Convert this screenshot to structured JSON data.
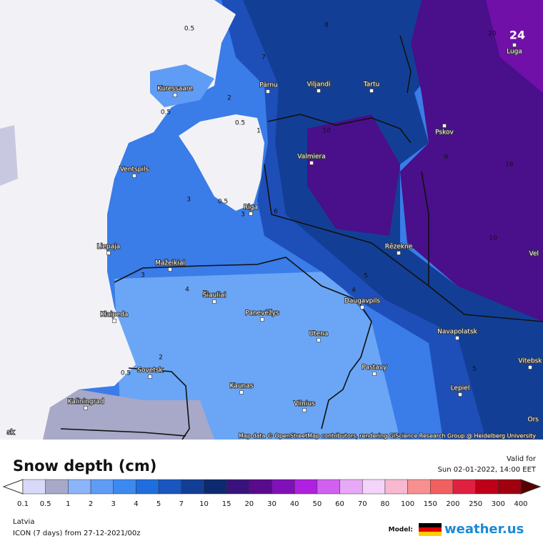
{
  "map": {
    "cities": [
      "Kuressaare",
      "Pärnu",
      "Viljandi",
      "Tartu",
      "Pskov",
      "Luga",
      "Valmiera",
      "Ventspils",
      "Riga",
      "Liepaja",
      "Rēzekne",
      "Mažeikiai",
      "Šiauliai",
      "Panevėžys",
      "Daugavpils",
      "Klaipeda",
      "Utena",
      "Navapolatsk",
      "Vitebsk",
      "Sovetsk",
      "Pastavy",
      "Kaunas",
      "Lepiel",
      "Vilnius",
      "Kaliningrad",
      "Vel",
      "Ors",
      "sk"
    ],
    "contour_labels": [
      0.5,
      0.5,
      0.5,
      0.5,
      0.5,
      1,
      2,
      2,
      3,
      3,
      3,
      4,
      4,
      5,
      5,
      6,
      7,
      8,
      9,
      10,
      10,
      16,
      20
    ],
    "corner_value": "24",
    "attribution": "Map data © OpenStreetMap contributors, rendering GIScience Research Group @ Heidelberg University"
  },
  "legend": {
    "title": "Snow depth (cm)",
    "valid_label": "Valid for",
    "valid_time": "Sun 02-01-2022, 14:00 EET",
    "scale": [
      0.1,
      0.5,
      1,
      2,
      3,
      4,
      5,
      7,
      10,
      15,
      20,
      30,
      40,
      50,
      60,
      70,
      80,
      100,
      150,
      200,
      250,
      300,
      400
    ],
    "colors": [
      "#d8d8f8",
      "#a8a8c8",
      "#8cb4f8",
      "#5f9cf5",
      "#3c8af0",
      "#1f6ee0",
      "#1a56c0",
      "#123f95",
      "#0c2a70",
      "#3a127d",
      "#5a0a8c",
      "#8010b8",
      "#b020e0",
      "#d060f0",
      "#e8a8f8",
      "#f4d4fa",
      "#f8b8d0",
      "#f89090",
      "#f06060",
      "#e02040",
      "#c00018",
      "#a00010"
    ],
    "region": "Latvia",
    "model_run": "ICON (7 days) from 27-12-2021/00z",
    "model_label": "Model:",
    "brand": "weather.us"
  }
}
